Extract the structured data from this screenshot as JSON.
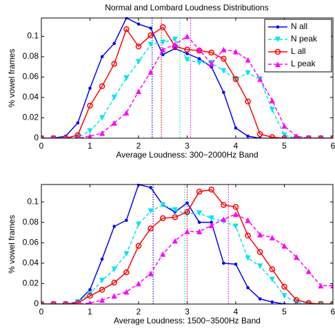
{
  "chart_data": [
    {
      "type": "line",
      "title": "Normal and Lombard Loudness Distributions",
      "xlabel": "Average Loudness: 300−2000Hz Band",
      "ylabel": "% vowel frames",
      "x": [
        0,
        0.25,
        0.5,
        0.75,
        1,
        1.25,
        1.5,
        1.75,
        2,
        2.25,
        2.5,
        2.75,
        3,
        3.25,
        3.5,
        3.75,
        4,
        4.25,
        4.5,
        4.75,
        5,
        5.25,
        5.5,
        5.75,
        6
      ],
      "xlim": [
        0,
        6
      ],
      "ylim": [
        0,
        0.118
      ],
      "xticks": [
        0,
        1,
        2,
        3,
        4,
        5,
        6
      ],
      "yticks": [
        0,
        0.02,
        0.04,
        0.06,
        0.08,
        0.1
      ],
      "legend": "northeast",
      "series": [
        {
          "name": "N all",
          "color": "#0000ff",
          "marker": "point",
          "linestyle": "solid",
          "mean": 2.28,
          "values": [
            0,
            0,
            0.002,
            0.015,
            0.049,
            0.08,
            0.093,
            0.118,
            0.112,
            0.108,
            0.082,
            0.088,
            0.083,
            0.078,
            0.07,
            0.045,
            0.01,
            0.002,
            0,
            0,
            0,
            0,
            0,
            0,
            0
          ]
        },
        {
          "name": "N peak",
          "color": "#00e5ee",
          "marker": "v",
          "linestyle": "dashed",
          "mean": 2.85,
          "values": [
            0,
            0,
            0,
            0.001,
            0.007,
            0.02,
            0.04,
            0.059,
            0.075,
            0.092,
            0.094,
            0.097,
            0.077,
            0.074,
            0.074,
            0.066,
            0.058,
            0.064,
            0.058,
            0.028,
            0.003,
            0,
            0,
            0,
            0
          ]
        },
        {
          "name": "L all",
          "color": "#ff0000",
          "marker": "o",
          "linestyle": "solid",
          "mean": 2.47,
          "values": [
            0,
            0,
            0,
            0.003,
            0.032,
            0.051,
            0.073,
            0.107,
            0.09,
            0.101,
            0.109,
            0.09,
            0.087,
            0.086,
            0.084,
            0.078,
            0.058,
            0.036,
            0.004,
            0.001,
            0,
            0,
            0,
            0,
            0
          ]
        },
        {
          "name": "L peak",
          "color": "#ff00ff",
          "marker": "^",
          "linestyle": "dashed",
          "mean": 3.07,
          "values": [
            0,
            0,
            0,
            0,
            0.002,
            0.005,
            0.015,
            0.025,
            0.046,
            0.065,
            0.087,
            0.092,
            0.1,
            0.087,
            0.073,
            0.087,
            0.085,
            0.077,
            0.058,
            0.037,
            0.012,
            0.002,
            0,
            0,
            0
          ]
        }
      ]
    },
    {
      "type": "line",
      "xlabel": "Average Loudness: 1500−3500Hz Band",
      "ylabel": "% vowel frames",
      "x": [
        0,
        0.25,
        0.5,
        0.75,
        1,
        1.25,
        1.5,
        1.75,
        2,
        2.25,
        2.5,
        2.75,
        3,
        3.25,
        3.5,
        3.75,
        4,
        4.25,
        4.5,
        4.75,
        5,
        5.25,
        5.5,
        5.75,
        6
      ],
      "xlim": [
        0,
        6
      ],
      "ylim": [
        0,
        0.117
      ],
      "xticks": [
        0,
        1,
        2,
        3,
        4,
        5,
        6
      ],
      "yticks": [
        0,
        0.02,
        0.04,
        0.06,
        0.08,
        0.1
      ],
      "series": [
        {
          "color": "#0000ff",
          "marker": "point",
          "linestyle": "solid",
          "mean": 2.3,
          "values": [
            0,
            0,
            0,
            0.002,
            0.014,
            0.044,
            0.076,
            0.082,
            0.117,
            0.114,
            0.097,
            0.09,
            0.099,
            0.08,
            0.08,
            0.04,
            0.039,
            0.016,
            0.005,
            0.002,
            0,
            0,
            0,
            0,
            0
          ]
        },
        {
          "color": "#00e5ee",
          "marker": "v",
          "linestyle": "dashed",
          "mean": 2.95,
          "values": [
            0,
            0,
            0,
            0.002,
            0.01,
            0.023,
            0.034,
            0.049,
            0.078,
            0.091,
            0.097,
            0.092,
            0.088,
            0.089,
            0.084,
            0.081,
            0.076,
            0.045,
            0.037,
            0.024,
            0.008,
            0.002,
            0,
            0,
            0
          ]
        },
        {
          "color": "#ff0000",
          "marker": "o",
          "linestyle": "solid",
          "mean": 3.0,
          "values": [
            0,
            0,
            0,
            0.001,
            0.008,
            0.014,
            0.021,
            0.031,
            0.057,
            0.074,
            0.084,
            0.085,
            0.09,
            0.11,
            0.112,
            0.097,
            0.095,
            0.067,
            0.051,
            0.034,
            0.017,
            0.004,
            0.001,
            0,
            0
          ]
        },
        {
          "color": "#ff00ff",
          "marker": "^",
          "linestyle": "dashed",
          "mean": 3.85,
          "values": [
            0,
            0,
            0,
            0,
            0.001,
            0.004,
            0.008,
            0.012,
            0.02,
            0.03,
            0.049,
            0.062,
            0.071,
            0.071,
            0.077,
            0.083,
            0.088,
            0.082,
            0.068,
            0.065,
            0.057,
            0.046,
            0.032,
            0.018,
            0.018
          ]
        }
      ]
    }
  ]
}
